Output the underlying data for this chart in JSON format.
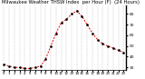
{
  "title": "Milwaukee Weather THSW Index  per Hour (F)  (24 Hours)",
  "hours": [
    0,
    1,
    2,
    3,
    4,
    5,
    6,
    7,
    8,
    9,
    10,
    11,
    12,
    13,
    14,
    15,
    16,
    17,
    18,
    19,
    20,
    21,
    22,
    23
  ],
  "values": [
    33,
    31,
    30,
    30,
    29,
    29,
    30,
    31,
    38,
    50,
    62,
    72,
    75,
    80,
    83,
    78,
    70,
    62,
    56,
    52,
    50,
    48,
    46,
    44
  ],
  "line_color": "#dd0000",
  "marker_color": "#000000",
  "grid_color": "#888888",
  "bg_color": "#ffffff",
  "ylim_min": 28,
  "ylim_max": 88,
  "yticks": [
    30,
    40,
    50,
    60,
    70,
    80
  ],
  "title_fontsize": 3.8,
  "tick_fontsize": 3.2
}
